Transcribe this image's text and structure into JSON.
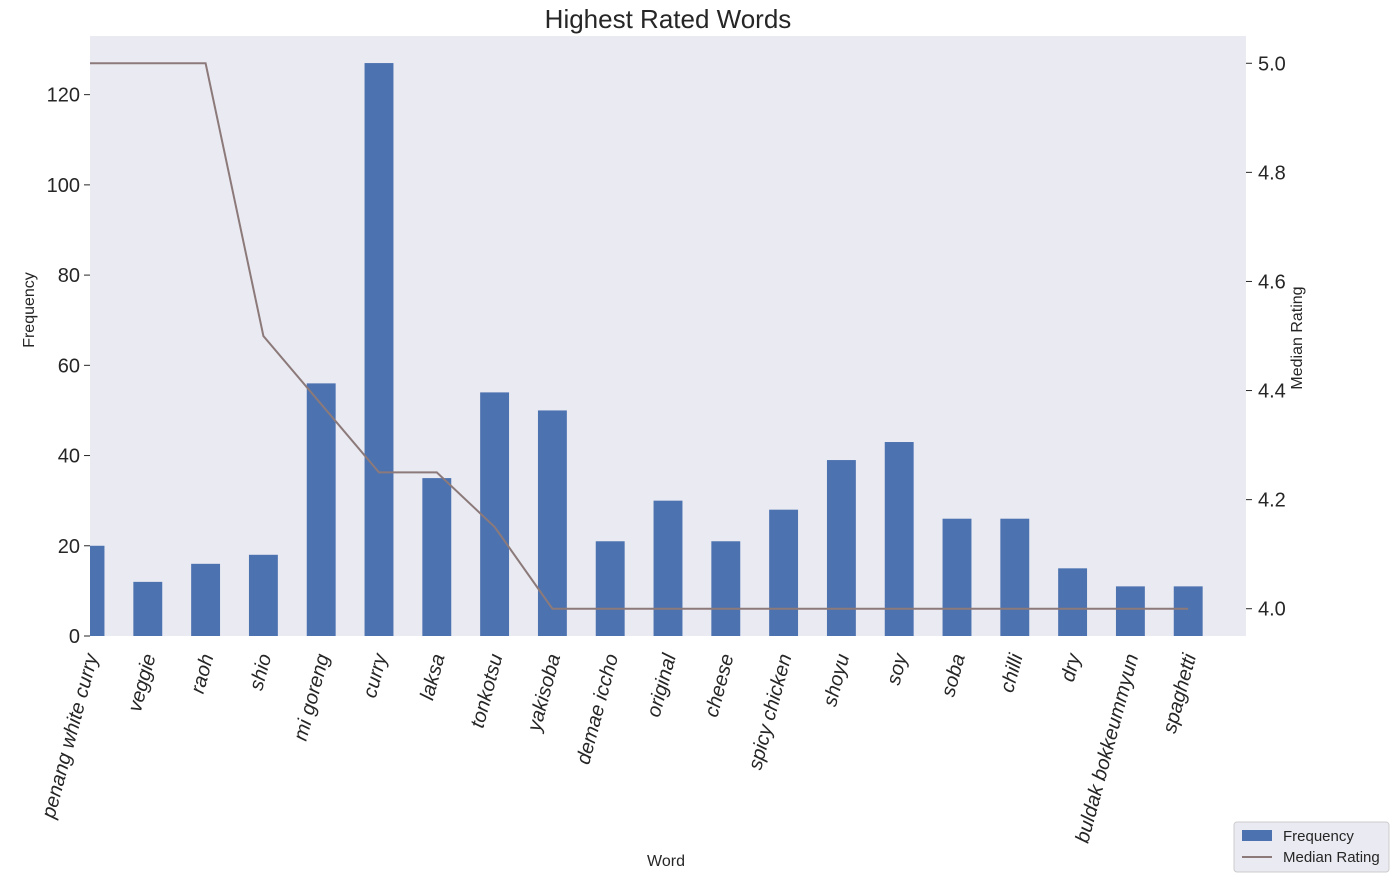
{
  "chart_data": {
    "type": "bar",
    "title": "Highest Rated Words",
    "xlabel": "Word",
    "ylabel": "Frequency",
    "y2label": "Median Rating",
    "categories": [
      "penang white curry",
      "veggie",
      "raoh",
      "shio",
      "mi goreng",
      "curry",
      "laksa",
      "tonkotsu",
      "yakisoba",
      "demae iccho",
      "original",
      "cheese",
      "spicy chicken",
      "shoyu",
      "soy",
      "soba",
      "chilli",
      "dry",
      "buldak bokkeummyun",
      "spaghetti"
    ],
    "series": [
      {
        "name": "Frequency",
        "type": "bar",
        "axis": "left",
        "color": "#4c72b0",
        "values": [
          20,
          12,
          16,
          18,
          56,
          127,
          35,
          54,
          50,
          21,
          30,
          21,
          28,
          39,
          43,
          26,
          26,
          15,
          11,
          11
        ]
      },
      {
        "name": "Median Rating",
        "type": "line",
        "axis": "right",
        "color": "#8c7a7a",
        "values": [
          5.0,
          5.0,
          5.0,
          4.5,
          4.375,
          4.25,
          4.25,
          4.15,
          4.0,
          4.0,
          4.0,
          4.0,
          4.0,
          4.0,
          4.0,
          4.0,
          4.0,
          4.0,
          4.0,
          4.0
        ]
      }
    ],
    "ylim": [
      0,
      133
    ],
    "yticks": [
      0,
      20,
      40,
      60,
      80,
      100,
      120
    ],
    "y2lim": [
      3.95,
      5.05
    ],
    "y2ticks": [
      4.0,
      4.2,
      4.4,
      4.6,
      4.8,
      5.0
    ],
    "y2tick_labels": [
      "4.0",
      "4.2",
      "4.4",
      "4.6",
      "4.8",
      "5.0"
    ],
    "grid": false,
    "legend_position": "bottom-right",
    "colors": {
      "plot_bg": "#eaeaf2",
      "bar": "#4c72b0",
      "line": "#8c7a7a"
    }
  }
}
